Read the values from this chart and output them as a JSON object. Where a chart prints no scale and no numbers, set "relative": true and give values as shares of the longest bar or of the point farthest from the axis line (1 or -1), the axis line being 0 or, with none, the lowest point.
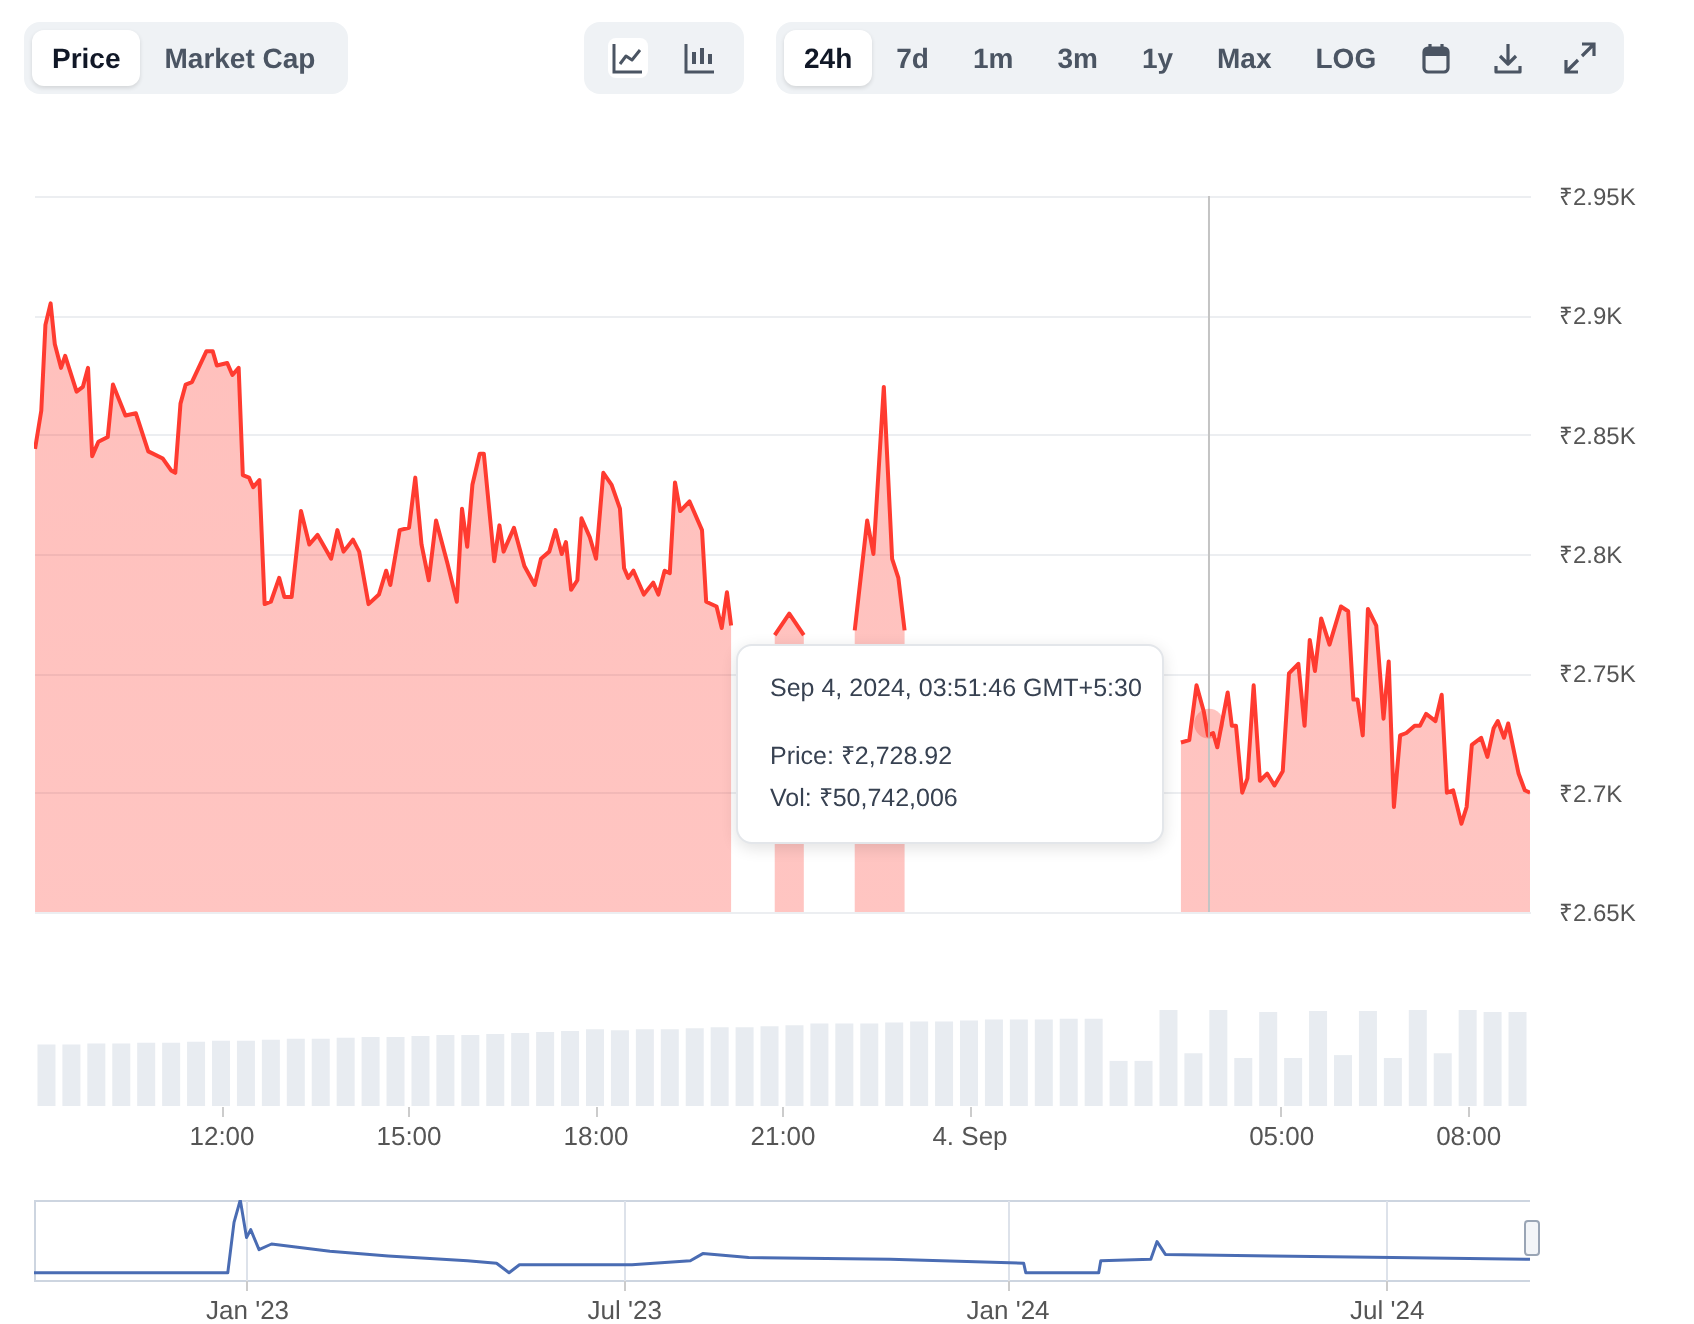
{
  "chart_data": [
    {
      "type": "other",
      "annotations": [
        "Price",
        "Market Cap",
        "24h",
        "7d",
        "1m",
        "3m",
        "1y",
        "Max",
        "LOG"
      ]
    },
    {
      "type": "area",
      "xlim": [
        "2024-09-03T09:00",
        "2024-09-04T09:00"
      ],
      "ylim": [
        2650,
        2950
      ],
      "yticks": [
        {
          "value": 2650,
          "label": "₹2.65K"
        },
        {
          "value": 2700,
          "label": "₹2.7K"
        },
        {
          "value": 2750,
          "label": "₹2.75K"
        },
        {
          "value": 2800,
          "label": "₹2.8K"
        },
        {
          "value": 2850,
          "label": "₹2.85K"
        },
        {
          "value": 2900,
          "label": "₹2.9K"
        },
        {
          "value": 2950,
          "label": "₹2.95K"
        }
      ],
      "grid": "y",
      "tick_labels": "y",
      "series": [
        {
          "color": "#ff3b30",
          "x": [
            "2024-09-03T09:01",
            "2024-09-03T09:07",
            "2024-09-03T09:11",
            "2024-09-03T09:16",
            "2024-09-03T09:20",
            "2024-09-03T09:26",
            "2024-09-03T09:30",
            "2024-09-03T09:41",
            "2024-09-03T09:47",
            "2024-09-03T09:52",
            "2024-09-03T09:56",
            "2024-09-03T10:02",
            "2024-09-03T10:11",
            "2024-09-03T10:16",
            "2024-09-03T10:28",
            "2024-09-03T10:38",
            "2024-09-03T10:50",
            "2024-09-03T11:04",
            "2024-09-03T11:12",
            "2024-09-03T11:16",
            "2024-09-03T11:21",
            "2024-09-03T11:26",
            "2024-09-03T11:32",
            "2024-09-03T11:46",
            "2024-09-03T11:52",
            "2024-09-03T11:56",
            "2024-09-03T12:06",
            "2024-09-03T12:11",
            "2024-09-03T12:17",
            "2024-09-03T12:21",
            "2024-09-03T12:27",
            "2024-09-03T12:31",
            "2024-09-03T12:37",
            "2024-09-03T12:42",
            "2024-09-03T12:48",
            "2024-09-03T12:56",
            "2024-09-03T13:01",
            "2024-09-03T13:08",
            "2024-09-03T13:17",
            "2024-09-03T13:25",
            "2024-09-03T13:33",
            "2024-09-03T13:46",
            "2024-09-03T13:52",
            "2024-09-03T13:58",
            "2024-09-03T14:07",
            "2024-09-03T14:13",
            "2024-09-03T14:22",
            "2024-09-03T14:32",
            "2024-09-03T14:39",
            "2024-09-03T14:43",
            "2024-09-03T14:52",
            "2024-09-03T15:01",
            "2024-09-03T15:07",
            "2024-09-03T15:13",
            "2024-09-03T15:20",
            "2024-09-03T15:27",
            "2024-09-03T15:38",
            "2024-09-03T15:47",
            "2024-09-03T15:52",
            "2024-09-03T15:57",
            "2024-09-03T16:02",
            "2024-09-03T16:09",
            "2024-09-03T16:13",
            "2024-09-03T16:23",
            "2024-09-03T16:28",
            "2024-09-03T16:32",
            "2024-09-03T16:42",
            "2024-09-03T16:52",
            "2024-09-03T17:02",
            "2024-09-03T17:08",
            "2024-09-03T17:16",
            "2024-09-03T17:22",
            "2024-09-03T17:28",
            "2024-09-03T17:32",
            "2024-09-03T17:37",
            "2024-09-03T17:43",
            "2024-09-03T17:47",
            "2024-09-03T17:55",
            "2024-09-03T18:01",
            "2024-09-03T18:08",
            "2024-09-03T18:16",
            "2024-09-03T18:24",
            "2024-09-03T18:28",
            "2024-09-03T18:32",
            "2024-09-03T18:37",
            "2024-09-03T18:47",
            "2024-09-03T18:56",
            "2024-09-03T19:01",
            "2024-09-03T19:07",
            "2024-09-03T19:12",
            "2024-09-03T19:17",
            "2024-09-03T19:22",
            "2024-09-03T19:31",
            "2024-09-03T19:43",
            "2024-09-03T19:47",
            "2024-09-03T19:57",
            "2024-09-03T20:02",
            "2024-09-03T20:07",
            "2024-09-03T20:11",
            "2024-09-03T20:36",
            "2024-09-03T20:53",
            "2024-09-03T21:07",
            "2024-09-03T21:21",
            "2024-09-03T21:42",
            "2024-09-03T22:10",
            "2024-09-03T22:22",
            "2024-09-03T22:28",
            "2024-09-03T22:38",
            "2024-09-03T22:46",
            "2024-09-03T22:52",
            "2024-09-03T22:58",
            "2024-09-04T01:12",
            "2024-09-04T03:24",
            "2024-09-04T03:32",
            "2024-09-04T03:39",
            "2024-09-04T03:46",
            "2024-09-04T03:50",
            "2024-09-04T03:55",
            "2024-09-04T03:59",
            "2024-09-04T04:09",
            "2024-09-04T04:13",
            "2024-09-04T04:17",
            "2024-09-04T04:23",
            "2024-09-04T04:28",
            "2024-09-04T04:34",
            "2024-09-04T04:40",
            "2024-09-04T04:47",
            "2024-09-04T04:54",
            "2024-09-04T05:02",
            "2024-09-04T05:08",
            "2024-09-04T05:17",
            "2024-09-04T05:23",
            "2024-09-04T05:28",
            "2024-09-04T05:33",
            "2024-09-04T05:39",
            "2024-09-04T05:47",
            "2024-09-04T05:58",
            "2024-09-04T06:05",
            "2024-09-04T06:10",
            "2024-09-04T06:14",
            "2024-09-04T06:19",
            "2024-09-04T06:24",
            "2024-09-04T06:32",
            "2024-09-04T06:39",
            "2024-09-04T06:44",
            "2024-09-04T06:49",
            "2024-09-04T06:55",
            "2024-09-04T07:01",
            "2024-09-04T07:09",
            "2024-09-04T07:14",
            "2024-09-04T07:20",
            "2024-09-04T07:29",
            "2024-09-04T07:35",
            "2024-09-04T07:40",
            "2024-09-04T07:46",
            "2024-09-04T07:54",
            "2024-09-04T07:59",
            "2024-09-04T08:04",
            "2024-09-04T08:13",
            "2024-09-04T08:19",
            "2024-09-04T08:25",
            "2024-09-04T08:29",
            "2024-09-04T08:35",
            "2024-09-04T08:39",
            "2024-09-04T08:49",
            "2024-09-04T08:55",
            "2024-09-04T09:00"
          ],
          "values": [
            2844,
            2860,
            2896,
            2905,
            2888,
            2878,
            2883,
            2868,
            2870,
            2878,
            2841,
            2847,
            2849,
            2871,
            2858,
            2859,
            2843,
            2840,
            2835,
            2834,
            2863,
            2871,
            2872,
            2885,
            2885,
            2879,
            2880,
            2875,
            2878,
            2833,
            2832,
            2828,
            2831,
            2779,
            2780,
            2790,
            2782,
            2782,
            2818,
            2804,
            2808,
            2798,
            2810,
            2801,
            2806,
            2801,
            2779,
            2783,
            2793,
            2787,
            2810,
            2811,
            2832,
            2804,
            2789,
            2814,
            2796,
            2780,
            2819,
            2803,
            2829,
            2842,
            2842,
            2797,
            2812,
            2801,
            2811,
            2795,
            2787,
            2798,
            2801,
            2810,
            2800,
            2805,
            2785,
            2789,
            2815,
            2807,
            2798,
            2834,
            2829,
            2819,
            2794,
            2790,
            2793,
            2783,
            2788,
            2783,
            2793,
            2792,
            2830,
            2818,
            2822,
            2810,
            2780,
            2778,
            2769,
            2784,
            2770,
            null,
            2766,
            2775,
            2766,
            null,
            2768,
            2814,
            2800,
            2870,
            2798,
            2790,
            2768,
            null,
            2721,
            2722,
            2745,
            2734,
            2724,
            2725,
            2719,
            2742,
            2728,
            2728,
            2700,
            2706,
            2745,
            2705,
            2708,
            2703,
            2709,
            2750,
            2754,
            2728,
            2764,
            2751,
            2773,
            2762,
            2778,
            2776,
            2739,
            2739,
            2724,
            2777,
            2770,
            2731,
            2755,
            2694,
            2724,
            2725,
            2728,
            2728,
            2733,
            2730,
            2741,
            2700,
            2701,
            2687,
            2694,
            2720,
            2723,
            2715,
            2727,
            2730,
            2723,
            2729,
            2708,
            2701,
            2700
          ]
        }
      ],
      "ref_lines": [
        {
          "axis": "x",
          "value": "2024-09-04T03:51",
          "color": "#c4c4c4"
        }
      ],
      "annotations": [
        {
          "text": "Sep 4, 2024, 03:51:46 GMT+5:30",
          "x": "2024-09-04T03:51",
          "y": 2728.92
        },
        "Price: ₹2,728.92",
        "Vol: ₹50,742,006"
      ]
    },
    {
      "type": "bar",
      "relative": true,
      "xlim": [
        "2024-09-03T09:00",
        "2024-09-04T09:00"
      ],
      "xticks": [
        {
          "value": "2024-09-03T12:00",
          "label": "12:00"
        },
        {
          "value": "2024-09-03T15:00",
          "label": "15:00"
        },
        {
          "value": "2024-09-03T18:00",
          "label": "18:00"
        },
        {
          "value": "2024-09-03T21:00",
          "label": "21:00"
        },
        {
          "value": "2024-09-04T00:00",
          "label": "4. Sep"
        },
        {
          "value": "2024-09-04T05:00",
          "label": "05:00"
        },
        {
          "value": "2024-09-04T08:00",
          "label": "08:00"
        }
      ],
      "series": [
        {
          "color": "#e8ecf1",
          "x": [
            "2024-09-03T09:12",
            "2024-09-03T09:36",
            "2024-09-03T10:00",
            "2024-09-03T10:24",
            "2024-09-03T10:48",
            "2024-09-03T11:12",
            "2024-09-03T11:36",
            "2024-09-03T12:00",
            "2024-09-03T12:24",
            "2024-09-03T12:48",
            "2024-09-03T13:12",
            "2024-09-03T13:36",
            "2024-09-03T14:00",
            "2024-09-03T14:24",
            "2024-09-03T14:48",
            "2024-09-03T15:12",
            "2024-09-03T15:36",
            "2024-09-03T16:00",
            "2024-09-03T16:24",
            "2024-09-03T16:48",
            "2024-09-03T17:12",
            "2024-09-03T17:36",
            "2024-09-03T18:00",
            "2024-09-03T18:24",
            "2024-09-03T18:48",
            "2024-09-03T19:12",
            "2024-09-03T19:36",
            "2024-09-03T20:00",
            "2024-09-03T20:24",
            "2024-09-03T20:48",
            "2024-09-03T21:12",
            "2024-09-03T21:36",
            "2024-09-03T22:00",
            "2024-09-03T22:24",
            "2024-09-03T22:48",
            "2024-09-03T23:12",
            "2024-09-03T23:36",
            "2024-09-04T00:00",
            "2024-09-04T00:24",
            "2024-09-04T00:48",
            "2024-09-04T01:12",
            "2024-09-04T01:36",
            "2024-09-04T02:00",
            "2024-09-04T02:24",
            "2024-09-04T02:48",
            "2024-09-04T03:12",
            "2024-09-04T03:36",
            "2024-09-04T04:00",
            "2024-09-04T04:24",
            "2024-09-04T04:48",
            "2024-09-04T05:12",
            "2024-09-04T05:36",
            "2024-09-04T06:00",
            "2024-09-04T06:24",
            "2024-09-04T06:48",
            "2024-09-04T07:12",
            "2024-09-04T07:36",
            "2024-09-04T08:00",
            "2024-09-04T08:24",
            "2024-09-04T08:48"
          ],
          "values": [
            0.64,
            0.64,
            0.65,
            0.65,
            0.66,
            0.66,
            0.67,
            0.68,
            0.68,
            0.69,
            0.7,
            0.7,
            0.71,
            0.72,
            0.72,
            0.73,
            0.74,
            0.74,
            0.75,
            0.76,
            0.77,
            0.78,
            0.8,
            0.79,
            0.8,
            0.8,
            0.81,
            0.82,
            0.82,
            0.83,
            0.84,
            0.86,
            0.86,
            0.86,
            0.87,
            0.88,
            0.88,
            0.89,
            0.9,
            0.9,
            0.9,
            0.91,
            0.91,
            0.47,
            0.47,
            1.0,
            0.55,
            1.0,
            0.5,
            0.98,
            0.5,
            0.99,
            0.53,
            0.99,
            0.5,
            1.0,
            0.55,
            1.0,
            0.98,
            0.98
          ]
        }
      ]
    },
    {
      "type": "line",
      "relative": true,
      "xlim": [
        "2022-09-21",
        "2024-09-08"
      ],
      "xticks": [
        {
          "value": "2023-01-01",
          "label": "Jan '23"
        },
        {
          "value": "2023-07-01",
          "label": "Jul '23"
        },
        {
          "value": "2024-01-01",
          "label": "Jan '24"
        },
        {
          "value": "2024-07-01",
          "label": "Jul '24"
        }
      ],
      "grid": "x",
      "series": [
        {
          "color": "#4a6cb3",
          "x": [
            "2022-09-21",
            "2022-12-23",
            "2022-12-26",
            "2022-12-29",
            "2023-01-01",
            "2023-01-03",
            "2023-01-07",
            "2023-01-13",
            "2023-02-10",
            "2023-03-10",
            "2023-04-17",
            "2023-05-01",
            "2023-05-07",
            "2023-05-12",
            "2023-07-05",
            "2023-08-02",
            "2023-08-08",
            "2023-08-30",
            "2023-11-06",
            "2024-01-09",
            "2024-01-10",
            "2024-02-14",
            "2024-02-15",
            "2024-03-10",
            "2024-03-13",
            "2024-03-17",
            "2024-05-07",
            "2024-07-04",
            "2024-09-08"
          ],
          "values": [
            0.09,
            0.09,
            0.72,
            1.0,
            0.53,
            0.63,
            0.38,
            0.45,
            0.36,
            0.3,
            0.24,
            0.21,
            0.09,
            0.19,
            0.19,
            0.24,
            0.33,
            0.28,
            0.26,
            0.21,
            0.09,
            0.09,
            0.24,
            0.26,
            0.48,
            0.32,
            0.3,
            0.28,
            0.26
          ]
        }
      ]
    }
  ]
}
